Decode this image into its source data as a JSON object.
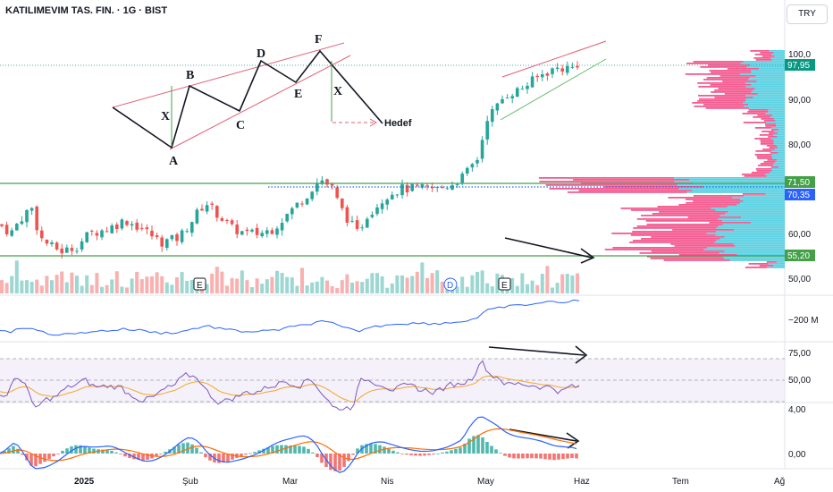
{
  "header": {
    "title": "KATILIMEVIM TAS. FIN. · 1G · BIST",
    "currency_label": "TRY"
  },
  "price_axis": {
    "ticks": [
      "100,0",
      "90,00",
      "80,00",
      "60,00",
      "50,00"
    ],
    "last_price": "97,95",
    "level_high": "71,50",
    "level_poc": "70,35",
    "level_low": "55,20",
    "tag_colors": {
      "last": "#089981",
      "high": "#43a047",
      "poc": "#2962ff",
      "low": "#43a047"
    }
  },
  "indicator_axes": {
    "obv_label": "−200 M",
    "rsi_ticks": [
      "75,00",
      "50,00"
    ],
    "macd_ticks": [
      "4,00",
      "0,00"
    ]
  },
  "time_axis": {
    "labels": [
      "2025",
      "Şub",
      "Mar",
      "Nis",
      "May",
      "Haz",
      "Tem",
      "Ağ"
    ]
  },
  "event_markers": [
    "E",
    "D",
    "E"
  ],
  "drawing": {
    "pattern_labels": [
      "X",
      "A",
      "B",
      "C",
      "D",
      "E",
      "F",
      "X"
    ],
    "target_label": "Hedef"
  },
  "colors": {
    "up": "#26a69a",
    "down": "#ef5350",
    "profile_pink": "#f23e7d",
    "profile_cyan": "#3ec8dc",
    "level_line": "#43a047",
    "rsi_line": "#7e57c2",
    "rsi_ma": "#f5a623",
    "macd_line": "#2962ff",
    "signal_line": "#ff6d00"
  }
}
